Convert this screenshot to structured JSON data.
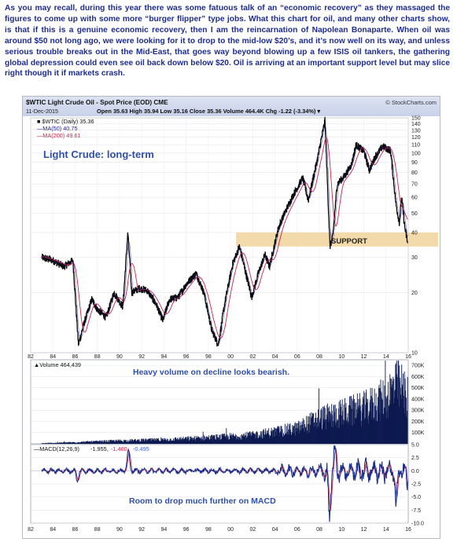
{
  "intro_text": "As you may recall, during this year there was some fatuous talk of an “economic recovery” as they massaged the figures to come up with some more “burger flipper” type jobs. What this chart for oil, and many other charts show, is that if this is a genuine economic recovery, then I am the reincarnation of Napolean Bonaparte. When oil was around $50 not long ago, we were looking for it to drop to the mid-low $20’s, and it’s now well on its way, and unless serious trouble breaks out in the Mid-East, that goes way beyond blowing up a few ISIS oil tankers, the gathering global depression could even see oil back down below $20. Oil is arriving at an important support level but may slice right though it if markets crash.",
  "header": {
    "title": "$WTIC Light Crude Oil - Spot Price (EOD) CME",
    "watermark": "© StockCharts.com",
    "date": "11-Dec-2015",
    "quote": "Open 35.63 High 35.94 Low 35.16 Close 35.36 Volume 464.4K Chg -1.22 (-3.34%) ▾"
  },
  "legend": {
    "main": "■ $WTIC (Daily) 35.36",
    "ma50": "—MA(50) 40.75",
    "ma200": "—MA(200) 49.61"
  },
  "annotations": {
    "price": "Light Crude: long-term",
    "support": "SUPPORT",
    "volume": "Heavy volume on decline looks bearish.",
    "macd": "Room to drop much further on MACD"
  },
  "volume_legend": "▲Volume 464,439",
  "macd_legend": {
    "label": "—MACD(12,26,9)",
    "macd": "-1.955,",
    "signal": "-1.460,",
    "hist": "-0.495"
  },
  "colors": {
    "price": "#0a0a0a",
    "ma50": "#1a1a8c",
    "ma200": "#c0284a",
    "volume": "#0d1a50",
    "support": "#f0d39c",
    "annotation": "#3050a8",
    "macd": "#0a0a0a",
    "signal": "#c0284a",
    "hist": "#4466cc"
  },
  "chart_data": [
    {
      "type": "line",
      "title": "$WTIC Light Crude Oil - Spot Price (EOD) CME",
      "scale": "log",
      "ylim": [
        10,
        150
      ],
      "xlim": [
        1982,
        2016
      ],
      "x_ticks": [
        "82",
        "84",
        "86",
        "88",
        "90",
        "92",
        "94",
        "96",
        "98",
        "00",
        "02",
        "04",
        "06",
        "08",
        "10",
        "12",
        "14",
        "16"
      ],
      "y_ticks": [
        10,
        20,
        30,
        40,
        50,
        60,
        70,
        80,
        90,
        100,
        110,
        120,
        130,
        140,
        150
      ],
      "series": [
        {
          "name": "$WTIC (Daily)",
          "x": [
            1983.0,
            1984.0,
            1985.0,
            1985.8,
            1986.3,
            1986.8,
            1987.5,
            1988.0,
            1988.8,
            1989.5,
            1990.3,
            1990.75,
            1991.1,
            1991.8,
            1992.5,
            1993.3,
            1993.9,
            1994.5,
            1995.3,
            1996.0,
            1996.9,
            1997.6,
            1998.3,
            1998.9,
            1999.5,
            2000.2,
            2000.8,
            2001.3,
            2001.9,
            2002.5,
            2003.1,
            2003.5,
            2004.3,
            2004.8,
            2005.6,
            2006.5,
            2007.0,
            2007.8,
            2008.5,
            2008.95,
            2009.2,
            2009.6,
            2010.3,
            2010.9,
            2011.3,
            2012.0,
            2012.5,
            2013.0,
            2013.7,
            2014.4,
            2014.9,
            2015.2,
            2015.4,
            2015.7,
            2015.95
          ],
          "values": [
            30,
            29,
            27,
            29,
            11,
            14,
            18.5,
            16.5,
            15,
            20,
            17,
            40,
            20,
            21,
            20.5,
            17.5,
            14.5,
            18.5,
            19,
            22,
            25,
            20,
            13,
            11,
            18,
            28,
            34,
            26,
            19,
            25,
            31,
            27,
            42,
            49,
            61,
            75,
            58,
            92,
            145,
            34,
            38,
            70,
            77,
            88,
            110,
            102,
            82,
            95,
            108,
            103,
            55,
            45,
            60,
            42,
            35.36
          ]
        },
        {
          "name": "MA(50)",
          "values_latest": 40.75
        },
        {
          "name": "MA(200)",
          "values_latest": 49.61
        }
      ],
      "support_band": [
        34,
        40
      ]
    },
    {
      "type": "bar",
      "title": "Volume 464,439",
      "ylim": [
        0,
        750000
      ],
      "y_ticks": [
        "100K",
        "200K",
        "300K",
        "400K",
        "500K",
        "600K",
        "700K"
      ],
      "x": [
        1983,
        1986,
        1990,
        1994,
        1998,
        2002,
        2006,
        2008,
        2010,
        2012,
        2014,
        2015,
        2015.95
      ],
      "values": [
        5000,
        15000,
        30000,
        40000,
        60000,
        85000,
        150000,
        250000,
        300000,
        350000,
        450000,
        600000,
        464439
      ]
    },
    {
      "type": "line",
      "title": "MACD(12,26,9)",
      "ylim": [
        -10,
        5
      ],
      "y_ticks": [
        5.0,
        2.5,
        0.0,
        -2.5,
        -5.0,
        -7.5,
        -10.0
      ],
      "series": [
        {
          "name": "MACD",
          "x": [
            1986.2,
            1990.8,
            2008.9,
            2009.4,
            2014.9,
            2015.95
          ],
          "values": [
            -2.0,
            4.0,
            -9.0,
            4.0,
            -7.0,
            -1.955
          ]
        },
        {
          "name": "Signal",
          "values_latest": -1.46
        },
        {
          "name": "Histogram",
          "values_latest": -0.495
        }
      ]
    }
  ]
}
